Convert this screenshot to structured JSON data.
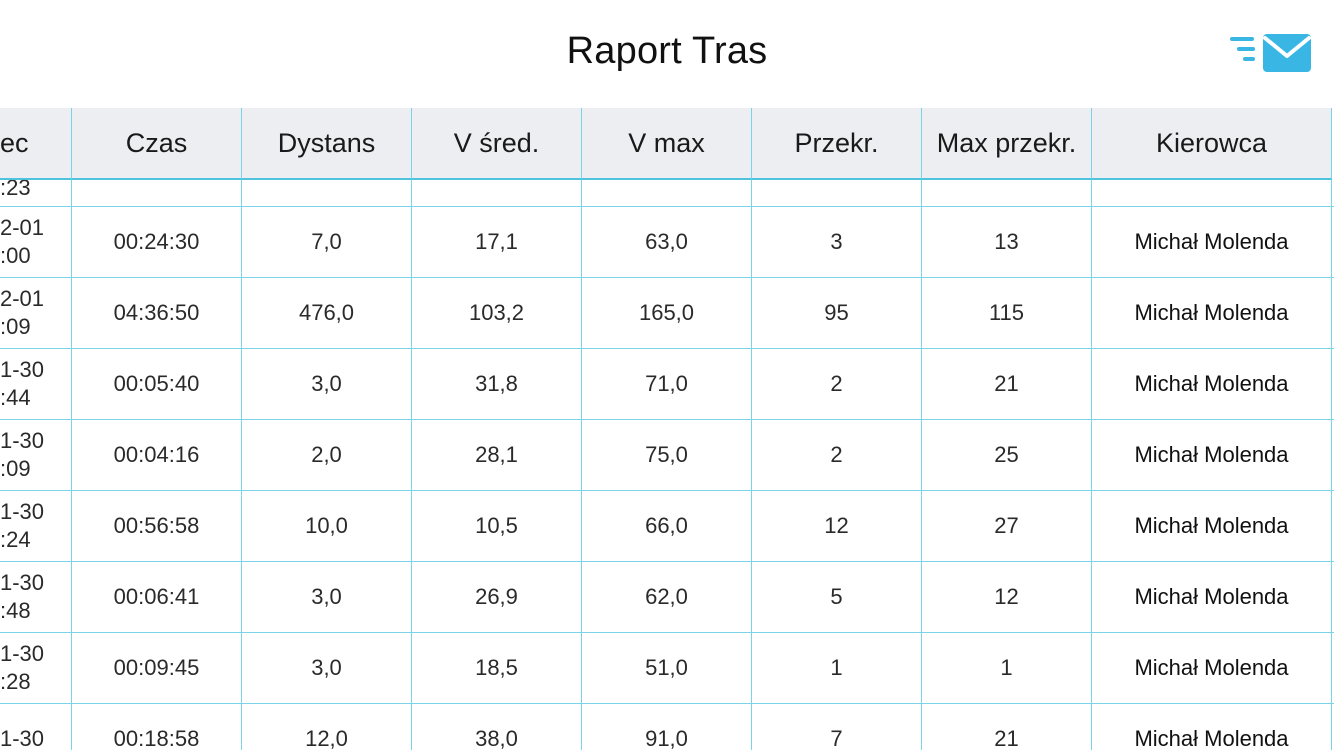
{
  "header": {
    "title": "Raport Tras",
    "mail_icon": "send-mail-icon",
    "accent_color": "#3ab6e4"
  },
  "table": {
    "columns": [
      "ec",
      "Czas",
      "Dystans",
      "V śred.",
      "V max",
      "Przekr.",
      "Max przekr.",
      "Kierowca"
    ],
    "partial_top_row": {
      "date_line2": ":23"
    },
    "rows": [
      {
        "date_line1": "2-01",
        "date_line2": ":00",
        "czas": "00:24:30",
        "dystans": "7,0",
        "v_sred": "17,1",
        "v_max": "63,0",
        "przekr": "3",
        "max_przekr": "13",
        "kierowca": "Michał Molenda"
      },
      {
        "date_line1": "2-01",
        "date_line2": ":09",
        "czas": "04:36:50",
        "dystans": "476,0",
        "v_sred": "103,2",
        "v_max": "165,0",
        "przekr": "95",
        "max_przekr": "115",
        "kierowca": "Michał Molenda"
      },
      {
        "date_line1": "1-30",
        "date_line2": ":44",
        "czas": "00:05:40",
        "dystans": "3,0",
        "v_sred": "31,8",
        "v_max": "71,0",
        "przekr": "2",
        "max_przekr": "21",
        "kierowca": "Michał Molenda"
      },
      {
        "date_line1": "1-30",
        "date_line2": ":09",
        "czas": "00:04:16",
        "dystans": "2,0",
        "v_sred": "28,1",
        "v_max": "75,0",
        "przekr": "2",
        "max_przekr": "25",
        "kierowca": "Michał Molenda"
      },
      {
        "date_line1": "1-30",
        "date_line2": ":24",
        "czas": "00:56:58",
        "dystans": "10,0",
        "v_sred": "10,5",
        "v_max": "66,0",
        "przekr": "12",
        "max_przekr": "27",
        "kierowca": "Michał Molenda"
      },
      {
        "date_line1": "1-30",
        "date_line2": ":48",
        "czas": "00:06:41",
        "dystans": "3,0",
        "v_sred": "26,9",
        "v_max": "62,0",
        "przekr": "5",
        "max_przekr": "12",
        "kierowca": "Michał Molenda"
      },
      {
        "date_line1": "1-30",
        "date_line2": ":28",
        "czas": "00:09:45",
        "dystans": "3,0",
        "v_sred": "18,5",
        "v_max": "51,0",
        "przekr": "1",
        "max_przekr": "1",
        "kierowca": "Michał Molenda"
      },
      {
        "date_line1": "1-30",
        "date_line2": "",
        "czas": "00:18:58",
        "dystans": "12,0",
        "v_sred": "38,0",
        "v_max": "91,0",
        "przekr": "7",
        "max_przekr": "21",
        "kierowca": "Michał Molenda"
      }
    ]
  }
}
